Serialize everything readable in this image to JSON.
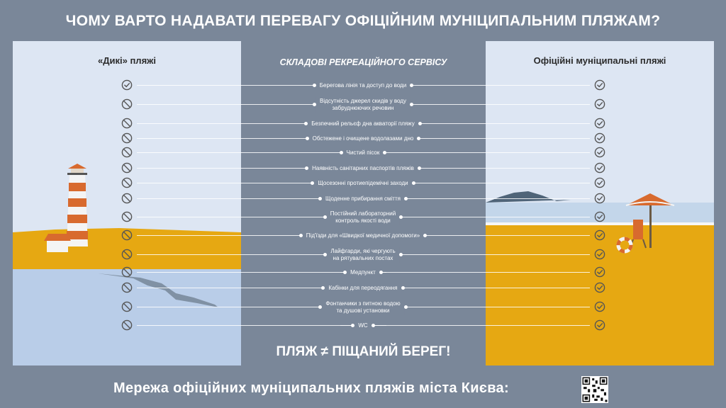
{
  "title": "ЧОМУ ВАРТО НАДАВАТИ ПЕРЕВАГУ ОФІЦІЙНИМ МУНІЦИПАЛЬНИМ ПЛЯЖАМ?",
  "left_panel": {
    "title": "«Дикі» пляжі"
  },
  "right_panel": {
    "title": "Офіційні муніципальні пляжі"
  },
  "center_title": "СКЛАДОВІ РЕКРЕАЦІЙНОГО СЕРВІСУ",
  "icons": {
    "allowed": "check-circle-icon",
    "forbidden": "prohibited-icon"
  },
  "criteria": [
    {
      "label": [
        "Берегова лінія та доступ до води"
      ],
      "wild": "check",
      "official": "check"
    },
    {
      "label": [
        "Відсутність джерел скидів у воду",
        "забруднюючих речовин"
      ],
      "wild": "no",
      "official": "check"
    },
    {
      "label": [
        "Безпечний рельєф дна акваторії пляжу"
      ],
      "wild": "no",
      "official": "check"
    },
    {
      "label": [
        "Обстежене і очищене водолазами дно"
      ],
      "wild": "no",
      "official": "check"
    },
    {
      "label": [
        "Чистий пісок"
      ],
      "wild": "no",
      "official": "check"
    },
    {
      "label": [
        "Наявність санітарних паспортів пляжів"
      ],
      "wild": "no",
      "official": "check"
    },
    {
      "label": [
        "Щосезонні протиепідемічні заходи"
      ],
      "wild": "no",
      "official": "check"
    },
    {
      "label": [
        "Щоденне прибирання сміття"
      ],
      "wild": "no",
      "official": "check"
    },
    {
      "label": [
        "Постійний лабораторний",
        "контроль якості води"
      ],
      "wild": "no",
      "official": "check"
    },
    {
      "label": [
        "Під'їзди для «Швидкої медичної допомоги»"
      ],
      "wild": "no",
      "official": "check"
    },
    {
      "label": [
        "Лайфгарди, які чергують",
        "на рятувальних постах"
      ],
      "wild": "no",
      "official": "check"
    },
    {
      "label": [
        "Медпункт"
      ],
      "wild": "no",
      "official": "check"
    },
    {
      "label": [
        "Кабінки для переодягання"
      ],
      "wild": "no",
      "official": "check"
    },
    {
      "label": [
        "Фонтанчики з питною водою",
        "та душові установки"
      ],
      "wild": "no",
      "official": "check"
    },
    {
      "label": [
        "WC"
      ],
      "wild": "no",
      "official": "check"
    }
  ],
  "slogan": "ПЛЯЖ ≠ ПІЩАНИЙ БЕРЕГ!",
  "footer": "Мережа офіційних муніципальних пляжів міста Києва:",
  "colors": {
    "background": "#7a8799",
    "sand": "#e6a812",
    "water": "#b9cde8",
    "sky": "#dde6f3",
    "icon": "#555555"
  }
}
